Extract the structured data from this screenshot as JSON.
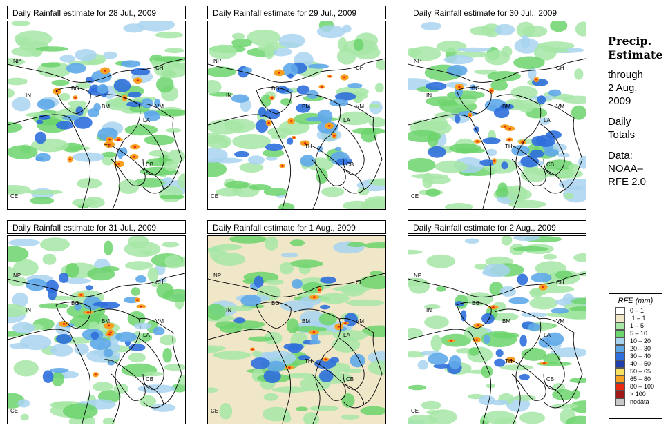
{
  "panels": [
    {
      "title": "Daily Rainfall estimate for  28 Jul., 2009",
      "heavy": 0.9,
      "base": 0.6
    },
    {
      "title": "Daily Rainfall estimate for  29 Jul., 2009",
      "heavy": 0.8,
      "base": 0.4
    },
    {
      "title": "Daily Rainfall estimate for  30 Jul., 2009",
      "heavy": 0.6,
      "base": 0.7
    },
    {
      "title": "Daily Rainfall estimate for  31 Jul., 2009",
      "heavy": 0.5,
      "base": 0.7
    },
    {
      "title": "Daily Rainfall estimate for  1 Aug., 2009",
      "heavy": 0.4,
      "base": 0.5
    },
    {
      "title": "Daily Rainfall estimate for  2 Aug., 2009",
      "heavy": 0.3,
      "base": 0.6
    }
  ],
  "country_labels": [
    "NP",
    "CH",
    "IN",
    "BG",
    "BM",
    "VM",
    "LA",
    "TH",
    "CB",
    "CE"
  ],
  "side": {
    "title1": "Precip.",
    "title2": "Estimate",
    "through": "through",
    "date1": "2 Aug.",
    "date2": "2009",
    "daily1": "Daily",
    "daily2": "Totals",
    "data1": "Data:",
    "data2": "NOAA–",
    "data3": "RFE 2.0"
  },
  "legend": {
    "title": "RFE (mm)",
    "items": [
      {
        "label": "0 – 1",
        "color": "#ffffff"
      },
      {
        "label": ".1 – 1",
        "color": "#f0e6c8"
      },
      {
        "label": "1 – 5",
        "color": "#a6e6a6"
      },
      {
        "label": "5 – 10",
        "color": "#6cd46c"
      },
      {
        "label": "10 – 20",
        "color": "#a8d4f0"
      },
      {
        "label": "20 – 30",
        "color": "#5fa8e8"
      },
      {
        "label": "30 – 40",
        "color": "#2f6fdc"
      },
      {
        "label": "40 – 50",
        "color": "#1f3fb0"
      },
      {
        "label": "50 – 65",
        "color": "#f8e060"
      },
      {
        "label": "65 – 80",
        "color": "#f8a020"
      },
      {
        "label": "80 – 100",
        "color": "#e82810"
      },
      {
        "label": "> 100",
        "color": "#a01818"
      },
      {
        "label": "nodata",
        "color": "#c8c8c8"
      }
    ]
  }
}
